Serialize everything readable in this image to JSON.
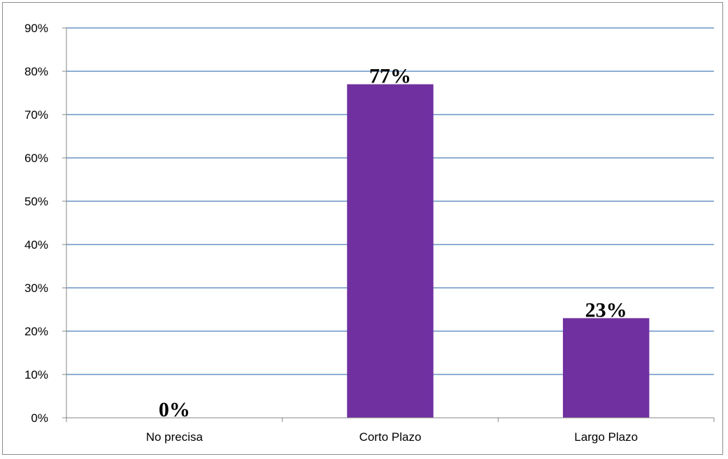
{
  "chart_data": {
    "type": "bar",
    "categories": [
      "No precisa",
      "Corto Plazo",
      "Largo Plazo"
    ],
    "values": [
      0,
      77,
      23
    ],
    "data_labels": [
      "0%",
      "77%",
      "23%"
    ],
    "title": "",
    "xlabel": "",
    "ylabel": "",
    "ylim": [
      0,
      90
    ],
    "yticks": [
      0,
      10,
      20,
      30,
      40,
      50,
      60,
      70,
      80,
      90
    ],
    "ytick_labels": [
      "0%",
      "10%",
      "20%",
      "30%",
      "40%",
      "50%",
      "60%",
      "70%",
      "80%",
      "90%"
    ],
    "grid": true,
    "legend": "none",
    "colors": {
      "bar": "#7030A0",
      "gridline": "#4A7EBB",
      "axis": "#868686"
    }
  }
}
